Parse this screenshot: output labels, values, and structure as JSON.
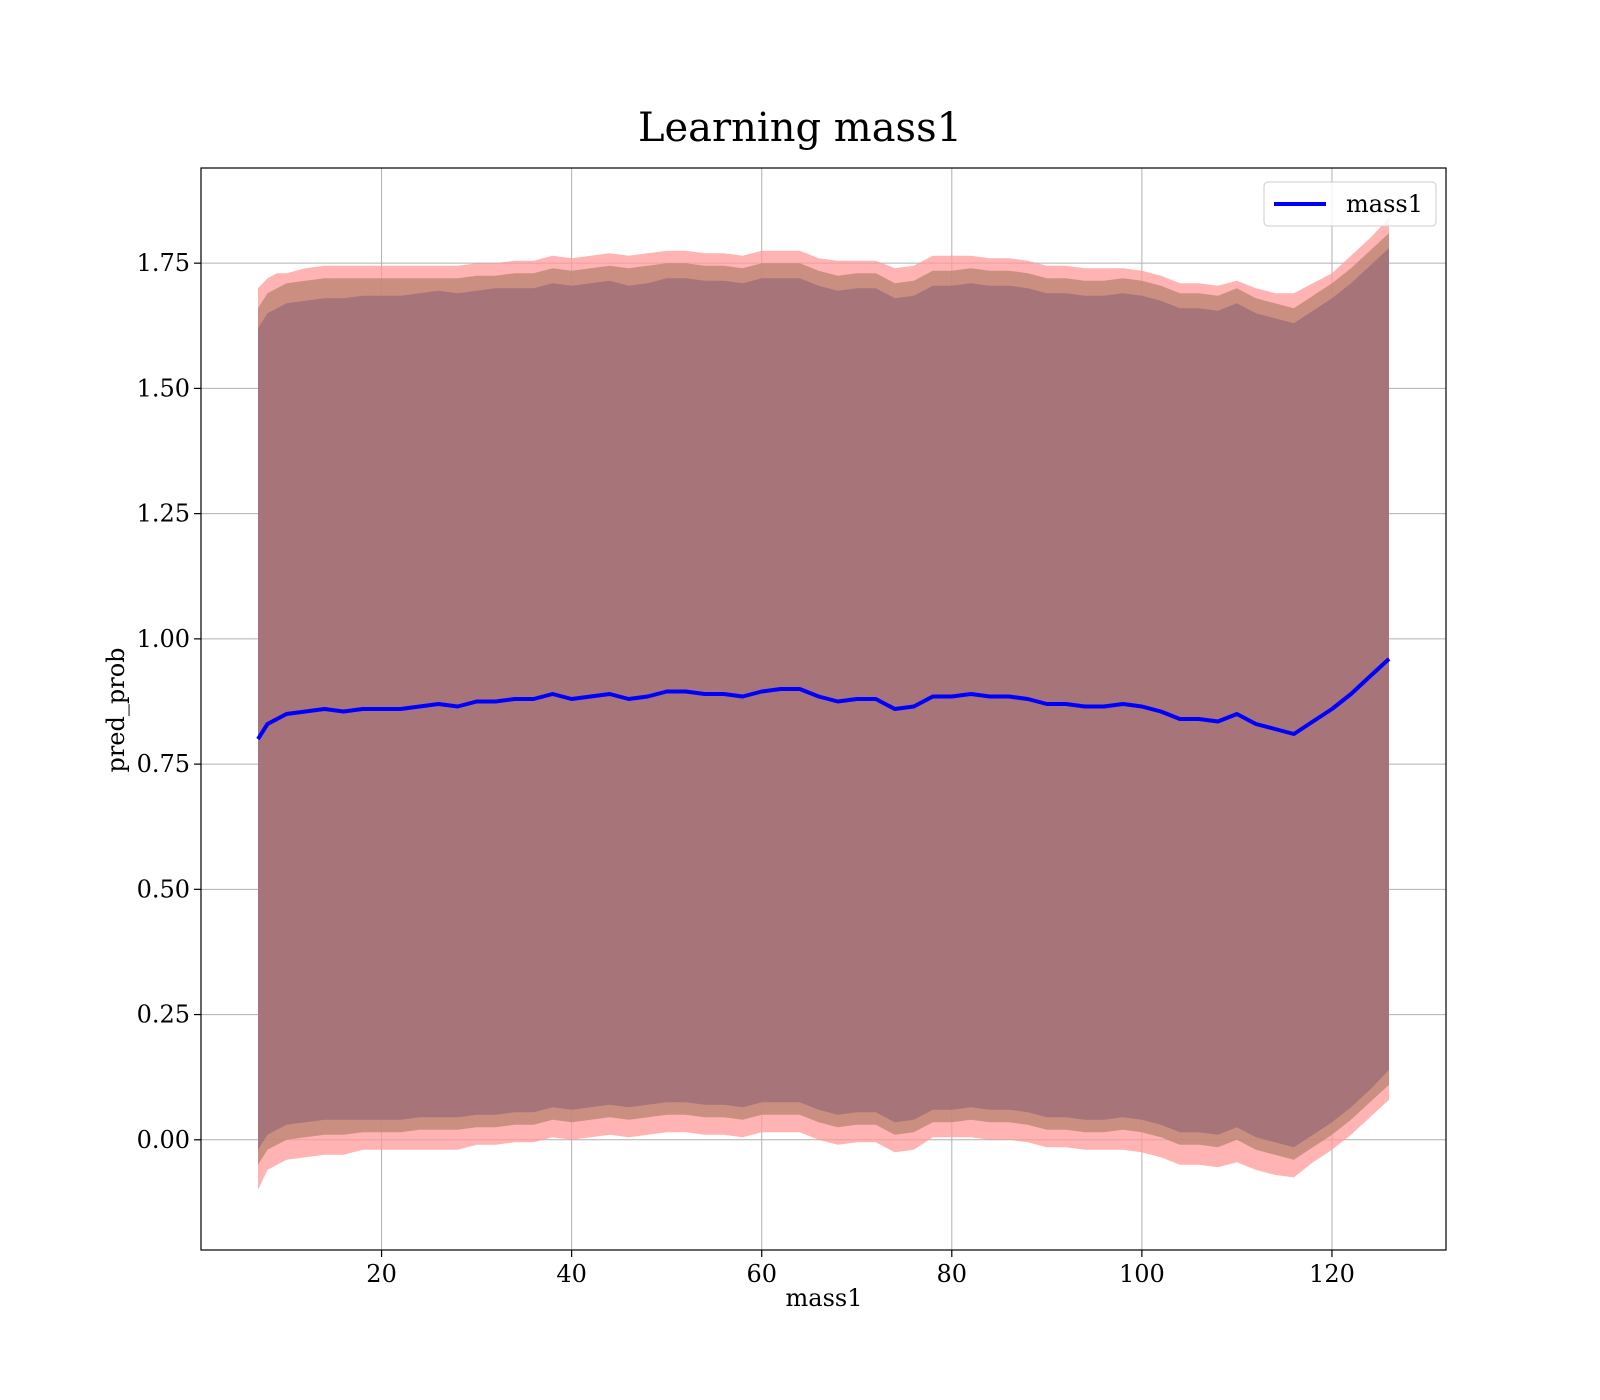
{
  "chart_data": {
    "type": "line",
    "title": "Learning mass1",
    "xlabel": "mass1",
    "ylabel": "pred_prob",
    "xlim": [
      1.0,
      132.0
    ],
    "ylim": [
      -0.22,
      1.94
    ],
    "xticks": [
      20,
      40,
      60,
      80,
      100,
      120
    ],
    "xtick_labels": [
      "20",
      "40",
      "60",
      "80",
      "100",
      "120"
    ],
    "yticks": [
      0.0,
      0.25,
      0.5,
      0.75,
      1.0,
      1.25,
      1.5,
      1.75
    ],
    "ytick_labels": [
      "0.00",
      "0.25",
      "0.50",
      "0.75",
      "1.00",
      "1.25",
      "1.50",
      "1.75"
    ],
    "grid": true,
    "legend": {
      "position": "top-right",
      "entries": [
        "mass1"
      ]
    },
    "series": [
      {
        "name": "mass1",
        "color": "#0000ff",
        "x": [
          7,
          8,
          9,
          10,
          12,
          14,
          16,
          18,
          20,
          22,
          24,
          26,
          28,
          30,
          32,
          34,
          36,
          38,
          40,
          42,
          44,
          46,
          48,
          50,
          52,
          54,
          56,
          58,
          60,
          62,
          64,
          66,
          68,
          70,
          72,
          74,
          76,
          78,
          80,
          82,
          84,
          86,
          88,
          90,
          92,
          94,
          96,
          98,
          100,
          102,
          104,
          106,
          108,
          110,
          112,
          114,
          116,
          118,
          120,
          122,
          124,
          126
        ],
        "y": [
          0.8,
          0.83,
          0.84,
          0.85,
          0.855,
          0.86,
          0.855,
          0.86,
          0.86,
          0.86,
          0.865,
          0.87,
          0.865,
          0.875,
          0.875,
          0.88,
          0.88,
          0.89,
          0.88,
          0.885,
          0.89,
          0.88,
          0.885,
          0.895,
          0.895,
          0.89,
          0.89,
          0.885,
          0.895,
          0.9,
          0.9,
          0.885,
          0.875,
          0.88,
          0.88,
          0.86,
          0.865,
          0.885,
          0.885,
          0.89,
          0.885,
          0.885,
          0.88,
          0.87,
          0.87,
          0.865,
          0.865,
          0.87,
          0.865,
          0.855,
          0.84,
          0.84,
          0.835,
          0.85,
          0.83,
          0.82,
          0.81,
          0.835,
          0.86,
          0.89,
          0.925,
          0.96
        ],
        "band_colors": [
          "#ff9999",
          "#b5806e",
          "#a07078"
        ],
        "band_upper": [
          [
            1.7,
            1.72,
            1.73,
            1.73,
            1.74,
            1.745,
            1.745,
            1.745,
            1.745,
            1.745,
            1.745,
            1.745,
            1.745,
            1.75,
            1.75,
            1.755,
            1.755,
            1.765,
            1.76,
            1.765,
            1.77,
            1.765,
            1.77,
            1.775,
            1.775,
            1.77,
            1.77,
            1.765,
            1.775,
            1.775,
            1.775,
            1.76,
            1.755,
            1.755,
            1.755,
            1.74,
            1.745,
            1.765,
            1.765,
            1.765,
            1.76,
            1.76,
            1.755,
            1.745,
            1.745,
            1.74,
            1.74,
            1.74,
            1.735,
            1.725,
            1.71,
            1.71,
            1.705,
            1.715,
            1.7,
            1.69,
            1.69,
            1.71,
            1.73,
            1.765,
            1.8,
            1.84
          ],
          [
            1.66,
            1.69,
            1.7,
            1.71,
            1.715,
            1.72,
            1.72,
            1.72,
            1.72,
            1.72,
            1.72,
            1.72,
            1.72,
            1.725,
            1.725,
            1.73,
            1.73,
            1.74,
            1.735,
            1.74,
            1.745,
            1.74,
            1.745,
            1.75,
            1.75,
            1.745,
            1.745,
            1.74,
            1.75,
            1.75,
            1.75,
            1.735,
            1.725,
            1.73,
            1.73,
            1.71,
            1.715,
            1.735,
            1.735,
            1.74,
            1.735,
            1.735,
            1.73,
            1.72,
            1.72,
            1.715,
            1.715,
            1.72,
            1.715,
            1.705,
            1.69,
            1.69,
            1.685,
            1.7,
            1.68,
            1.67,
            1.66,
            1.685,
            1.71,
            1.74,
            1.775,
            1.81
          ],
          [
            1.62,
            1.65,
            1.66,
            1.67,
            1.675,
            1.68,
            1.68,
            1.685,
            1.685,
            1.685,
            1.69,
            1.695,
            1.69,
            1.695,
            1.7,
            1.7,
            1.7,
            1.71,
            1.705,
            1.71,
            1.715,
            1.705,
            1.71,
            1.72,
            1.72,
            1.715,
            1.715,
            1.71,
            1.72,
            1.72,
            1.72,
            1.705,
            1.695,
            1.7,
            1.7,
            1.68,
            1.685,
            1.705,
            1.705,
            1.71,
            1.705,
            1.705,
            1.7,
            1.69,
            1.69,
            1.685,
            1.685,
            1.69,
            1.685,
            1.675,
            1.66,
            1.66,
            1.655,
            1.67,
            1.65,
            1.64,
            1.63,
            1.655,
            1.68,
            1.71,
            1.745,
            1.78
          ]
        ],
        "band_lower": [
          [
            -0.1,
            -0.06,
            -0.05,
            -0.04,
            -0.035,
            -0.03,
            -0.03,
            -0.02,
            -0.02,
            -0.02,
            -0.02,
            -0.02,
            -0.02,
            -0.01,
            -0.01,
            -0.005,
            -0.005,
            0.005,
            0.0,
            0.005,
            0.01,
            0.005,
            0.01,
            0.015,
            0.015,
            0.01,
            0.01,
            0.005,
            0.015,
            0.015,
            0.015,
            0.0,
            -0.01,
            -0.005,
            -0.005,
            -0.025,
            -0.02,
            0.005,
            0.005,
            0.005,
            0.0,
            0.0,
            -0.005,
            -0.015,
            -0.015,
            -0.02,
            -0.02,
            -0.02,
            -0.025,
            -0.035,
            -0.05,
            -0.05,
            -0.055,
            -0.045,
            -0.06,
            -0.07,
            -0.075,
            -0.045,
            -0.02,
            0.01,
            0.045,
            0.08
          ],
          [
            -0.05,
            -0.02,
            -0.01,
            0.0,
            0.005,
            0.01,
            0.01,
            0.015,
            0.015,
            0.015,
            0.02,
            0.02,
            0.02,
            0.025,
            0.025,
            0.03,
            0.03,
            0.04,
            0.035,
            0.04,
            0.045,
            0.04,
            0.045,
            0.05,
            0.05,
            0.045,
            0.045,
            0.04,
            0.05,
            0.05,
            0.05,
            0.035,
            0.025,
            0.03,
            0.03,
            0.01,
            0.015,
            0.035,
            0.035,
            0.04,
            0.035,
            0.035,
            0.03,
            0.02,
            0.02,
            0.015,
            0.015,
            0.02,
            0.015,
            0.005,
            -0.01,
            -0.01,
            -0.015,
            0.0,
            -0.02,
            -0.03,
            -0.04,
            -0.015,
            0.01,
            0.04,
            0.075,
            0.11
          ],
          [
            -0.02,
            0.01,
            0.02,
            0.03,
            0.035,
            0.04,
            0.04,
            0.04,
            0.04,
            0.04,
            0.045,
            0.045,
            0.045,
            0.05,
            0.05,
            0.055,
            0.055,
            0.065,
            0.06,
            0.065,
            0.07,
            0.065,
            0.07,
            0.075,
            0.075,
            0.07,
            0.07,
            0.065,
            0.075,
            0.075,
            0.075,
            0.06,
            0.05,
            0.055,
            0.055,
            0.035,
            0.04,
            0.06,
            0.06,
            0.065,
            0.06,
            0.06,
            0.055,
            0.045,
            0.045,
            0.04,
            0.04,
            0.045,
            0.04,
            0.03,
            0.015,
            0.015,
            0.01,
            0.025,
            0.005,
            -0.005,
            -0.015,
            0.01,
            0.035,
            0.065,
            0.1,
            0.14
          ]
        ]
      }
    ]
  }
}
